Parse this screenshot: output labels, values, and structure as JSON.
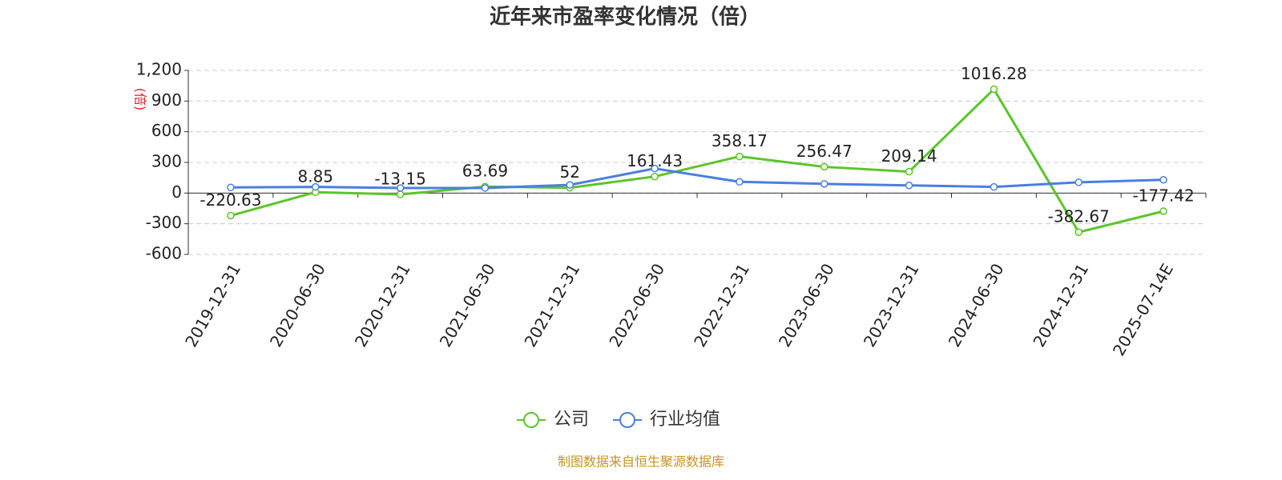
{
  "chart_data": {
    "type": "line",
    "title": "近年来市盈率变化情况（倍）",
    "y_label": "(倍)",
    "categories": [
      "2019-12-31",
      "2020-06-30",
      "2020-12-31",
      "2021-06-30",
      "2021-12-31",
      "2022-06-30",
      "2022-12-31",
      "2023-06-30",
      "2023-12-31",
      "2024-06-30",
      "2024-12-31",
      "2025-07-14E"
    ],
    "series": [
      {
        "name": "公司",
        "color": "#5ac52a",
        "data_labels": true,
        "values": [
          -220.63,
          8.85,
          -13.15,
          63.69,
          52,
          161.43,
          358.17,
          256.47,
          209.14,
          1016.28,
          -382.67,
          -177.42
        ]
      },
      {
        "name": "行业均值",
        "color": "#4a7fde",
        "data_labels": false,
        "values": [
          55,
          60,
          50,
          50,
          80,
          240,
          110,
          90,
          75,
          60,
          105,
          130
        ]
      }
    ],
    "ylim": [
      -600,
      1200
    ],
    "yticks": [
      -600,
      -300,
      0,
      300,
      600,
      900,
      {
        "value": 1200,
        "label": "1,200"
      }
    ],
    "grid": true,
    "source": "制图数据来自恒生聚源数据库"
  }
}
